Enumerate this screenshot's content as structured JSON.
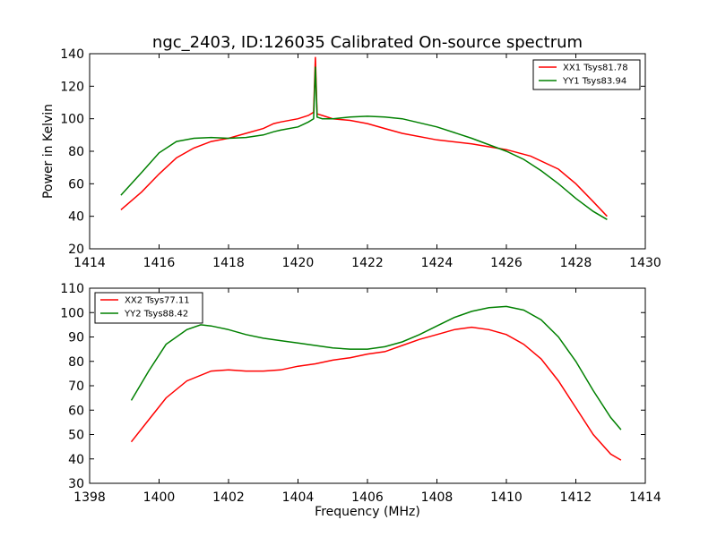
{
  "figure": {
    "title": "ngc_2403, ID:126035 Calibrated On-source spectrum",
    "ylabel": "Power in Kelvin",
    "xlabel": "Frequency (MHz)"
  },
  "chart_data": [
    {
      "type": "line",
      "title": "ngc_2403, ID:126035 Calibrated On-source spectrum",
      "ylabel": "Power in Kelvin",
      "xlabel": "",
      "xlim": [
        1414,
        1430
      ],
      "ylim": [
        20,
        140
      ],
      "xticks": [
        "1414",
        "1416",
        "1418",
        "1420",
        "1422",
        "1424",
        "1426",
        "1428",
        "1430"
      ],
      "yticks": [
        "20",
        "40",
        "60",
        "80",
        "100",
        "120",
        "140"
      ],
      "legend_position": "top-right",
      "series": [
        {
          "name": "XX1 Tsys81.78",
          "color": "#ff0000",
          "x": [
            1414.9,
            1415.5,
            1416,
            1416.5,
            1417,
            1417.5,
            1418,
            1418.5,
            1419,
            1419.3,
            1419.5,
            1420,
            1420.3,
            1420.45,
            1420.5,
            1420.55,
            1420.7,
            1421,
            1421.5,
            1422,
            1422.5,
            1423,
            1424,
            1425,
            1426,
            1426.7,
            1427.5,
            1428,
            1428.5,
            1428.9
          ],
          "y": [
            44,
            55,
            66,
            76,
            82,
            86,
            88,
            91,
            94,
            97,
            98,
            100,
            102,
            104,
            138,
            103,
            102,
            100,
            99,
            97,
            94,
            91,
            87,
            84.5,
            81,
            77,
            69,
            60,
            49,
            40
          ]
        },
        {
          "name": "YY1 Tsys83.94",
          "color": "#008000",
          "x": [
            1414.9,
            1415.5,
            1416,
            1416.5,
            1417,
            1417.5,
            1418,
            1418.5,
            1419,
            1419.3,
            1419.5,
            1420,
            1420.3,
            1420.45,
            1420.5,
            1420.55,
            1420.7,
            1421,
            1421.5,
            1422,
            1422.5,
            1423,
            1424,
            1425,
            1426,
            1426.5,
            1427,
            1427.5,
            1428,
            1428.5,
            1428.9
          ],
          "y": [
            53,
            67,
            79,
            86,
            88,
            88.5,
            88,
            88.5,
            90,
            92,
            93,
            95,
            98,
            100,
            132,
            101,
            100,
            100,
            101,
            101.5,
            101,
            100,
            95,
            88,
            80,
            75,
            68,
            60,
            51,
            43,
            38
          ]
        }
      ]
    },
    {
      "type": "line",
      "title": "",
      "ylabel": "",
      "xlabel": "Frequency (MHz)",
      "xlim": [
        1398,
        1414
      ],
      "ylim": [
        30,
        110
      ],
      "xticks": [
        "1398",
        "1400",
        "1402",
        "1404",
        "1406",
        "1408",
        "1410",
        "1412",
        "1414"
      ],
      "yticks": [
        "30",
        "40",
        "50",
        "60",
        "70",
        "80",
        "90",
        "100",
        "110"
      ],
      "legend_position": "top-left",
      "series": [
        {
          "name": "XX2 Tsys77.11",
          "color": "#ff0000",
          "x": [
            1399.2,
            1399.7,
            1400.2,
            1400.8,
            1401.5,
            1402,
            1402.5,
            1403,
            1403.5,
            1404,
            1404.5,
            1405,
            1405.5,
            1406,
            1406.5,
            1407,
            1407.5,
            1408,
            1408.5,
            1409,
            1409.5,
            1410,
            1410.5,
            1411,
            1411.5,
            1412,
            1412.5,
            1413,
            1413.3
          ],
          "y": [
            47,
            56,
            65,
            72,
            76,
            76.5,
            76,
            76,
            76.5,
            78,
            79,
            80.5,
            81.5,
            83,
            84,
            86.5,
            89,
            91,
            93,
            94,
            93,
            91,
            87,
            81,
            72,
            61,
            50,
            42,
            39.5
          ]
        },
        {
          "name": "YY2 Tsys88.42",
          "color": "#008000",
          "x": [
            1399.2,
            1399.7,
            1400.2,
            1400.8,
            1401.2,
            1401.5,
            1402,
            1402.5,
            1403,
            1403.5,
            1404,
            1404.5,
            1405,
            1405.5,
            1406,
            1406.5,
            1407,
            1407.5,
            1408,
            1408.5,
            1409,
            1409.5,
            1410,
            1410.5,
            1411,
            1411.5,
            1412,
            1412.5,
            1413,
            1413.3
          ],
          "y": [
            64,
            76,
            87,
            93,
            95,
            94.5,
            93,
            91,
            89.5,
            88.5,
            87.5,
            86.5,
            85.5,
            85,
            85,
            86,
            88,
            91,
            94.5,
            98,
            100.5,
            102,
            102.5,
            101,
            97,
            90,
            80,
            68,
            57,
            52
          ]
        }
      ]
    }
  ]
}
